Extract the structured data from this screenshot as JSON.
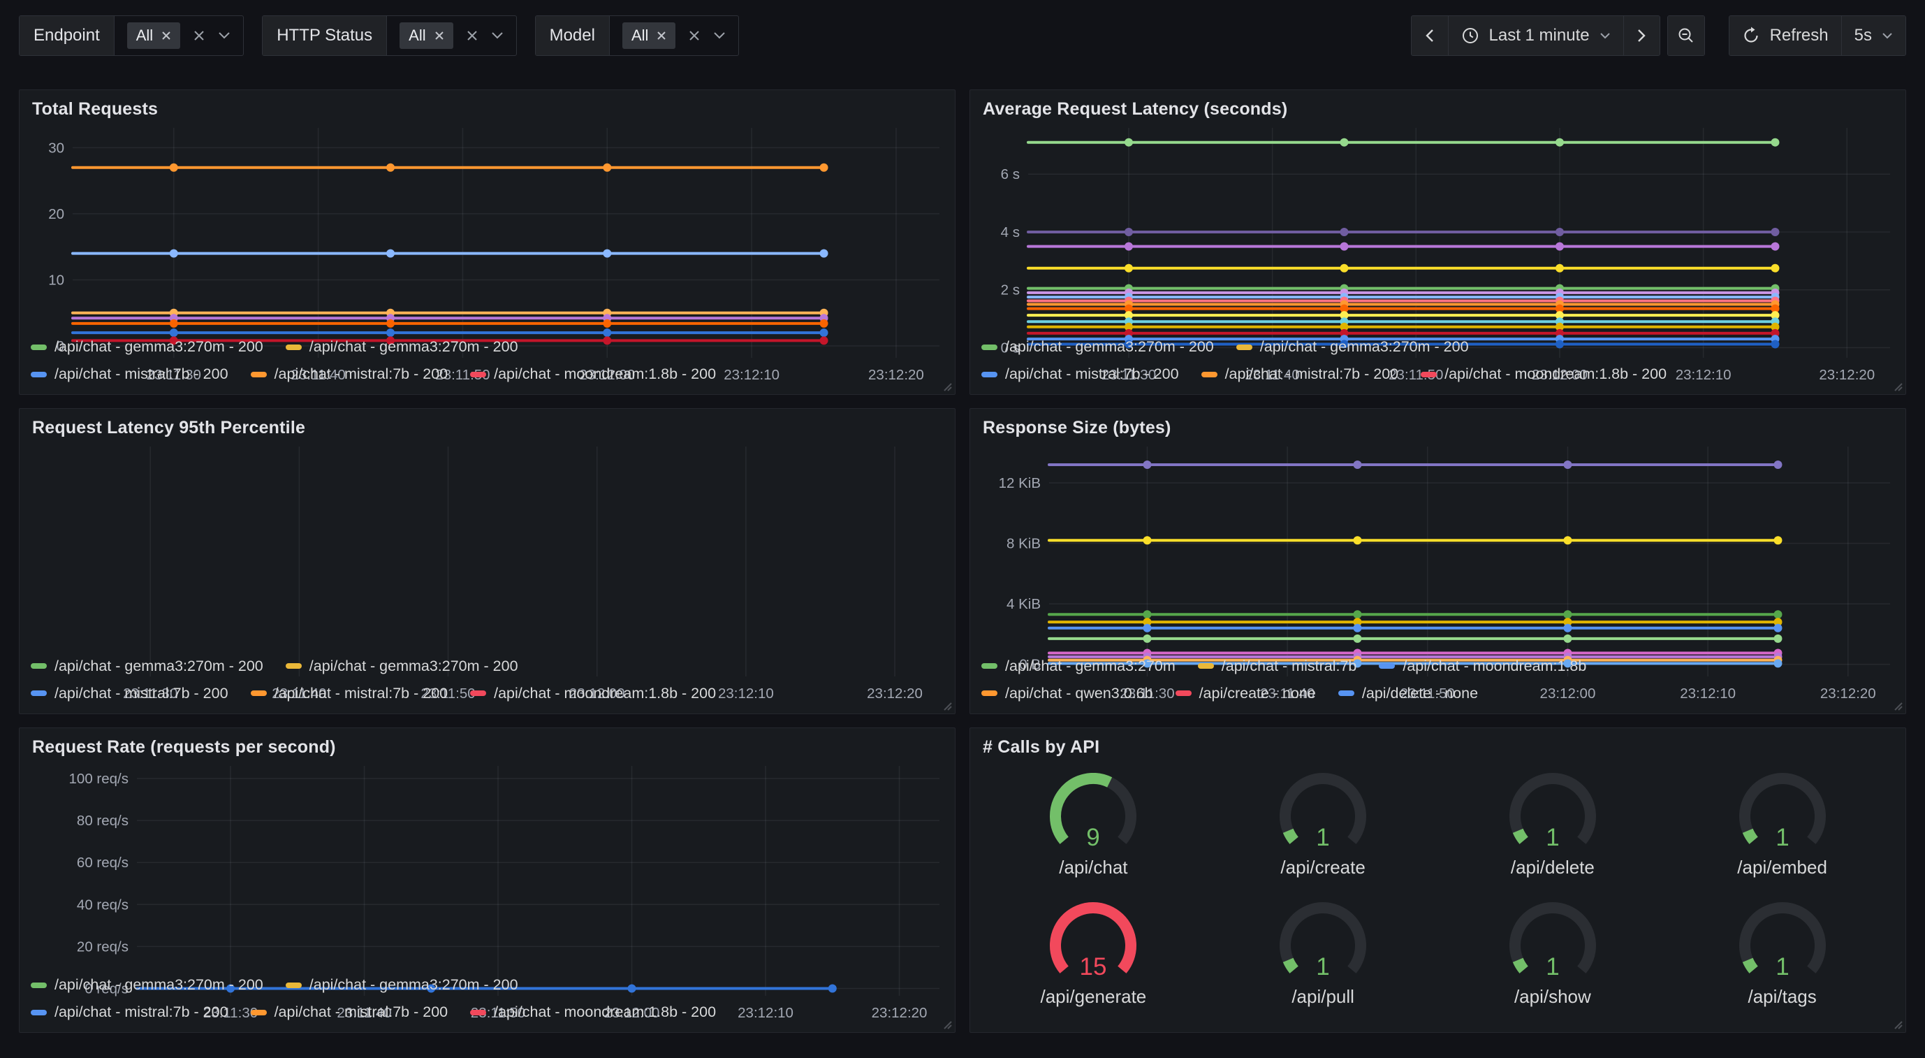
{
  "colors": {
    "page_bg": "#111217",
    "panel_bg": "#181b1f",
    "panel_border": "#25272e",
    "text": "#d8d9da",
    "muted_text": "#9da5b4",
    "grid": "rgba(204,214,235,0.08)",
    "green": "#73BF69",
    "red": "#F2495C",
    "gauge_track": "#2b2e33"
  },
  "toolbar": {
    "filters": [
      {
        "label": "Endpoint",
        "value_tag": "All"
      },
      {
        "label": "HTTP Status",
        "value_tag": "All"
      },
      {
        "label": "Model",
        "value_tag": "All"
      }
    ],
    "time_picker": {
      "range_label": "Last 1 minute"
    },
    "refresh": {
      "label": "Refresh",
      "interval": "5s"
    }
  },
  "chart_data": [
    {
      "id": "total-requests",
      "type": "line",
      "title": "Total Requests",
      "x_ticks": [
        "23:11:30",
        "23:11:40",
        "23:11:50",
        "23:12:00",
        "23:12:10",
        "23:12:20"
      ],
      "x_range": [
        "23:11:23",
        "23:12:23"
      ],
      "point_times": [
        "23:11:30",
        "23:11:45",
        "23:12:00",
        "23:12:15"
      ],
      "y_ticks": [
        {
          "value": 0,
          "label": "0"
        },
        {
          "value": 10,
          "label": "10"
        },
        {
          "value": 20,
          "label": "20"
        },
        {
          "value": 30,
          "label": "30"
        }
      ],
      "ylim": [
        -1.8,
        33
      ],
      "layout": {
        "gutter": 68
      },
      "series": [
        {
          "color": "#FF9830",
          "value": 27
        },
        {
          "color": "#8AB8FF",
          "value": 14
        },
        {
          "color": "#FFB357",
          "value": 5
        },
        {
          "color": "#B877D9",
          "value": 4.2
        },
        {
          "color": "#FA6400",
          "value": 3.4
        },
        {
          "color": "#3274D9",
          "value": 2
        },
        {
          "color": "#C4162A",
          "value": 0.8
        }
      ],
      "legend_rows": [
        [
          {
            "color": "#73BF69",
            "label": "/api/chat - gemma3:270m - 200"
          },
          {
            "color": "#EAB839",
            "label": "/api/chat - gemma3:270m - 200"
          }
        ],
        [
          {
            "color": "#5794F2",
            "label": "/api/chat - mistral:7b - 200"
          },
          {
            "color": "#FF9830",
            "label": "/api/chat - mistral:7b - 200"
          },
          {
            "color": "#F2495C",
            "label": "/api/chat - moondream:1.8b - 200"
          }
        ]
      ]
    },
    {
      "id": "avg-latency",
      "type": "line",
      "title": "Average Request Latency (seconds)",
      "x_ticks": [
        "23:11:30",
        "23:11:40",
        "23:11:50",
        "23:12:00",
        "23:12:10",
        "23:12:20"
      ],
      "x_range": [
        "23:11:23",
        "23:12:23"
      ],
      "point_times": [
        "23:11:30",
        "23:11:45",
        "23:12:00",
        "23:12:15"
      ],
      "y_ticks": [
        {
          "value": 0,
          "label": "0 s"
        },
        {
          "value": 2,
          "label": "2 s"
        },
        {
          "value": 4,
          "label": "4 s"
        },
        {
          "value": 6,
          "label": "6 s"
        }
      ],
      "ylim": [
        -0.35,
        7.6
      ],
      "layout": {
        "gutter": 75
      },
      "series": [
        {
          "color": "#96D98D",
          "value": 7.1
        },
        {
          "color": "#705DA0",
          "value": 4
        },
        {
          "color": "#B877D9",
          "value": 3.5
        },
        {
          "color": "#FADE2A",
          "value": 2.75
        },
        {
          "color": "#73BF69",
          "value": 2.05
        },
        {
          "color": "#CA95E5",
          "value": 1.9
        },
        {
          "color": "#8AB8FF",
          "value": 1.75
        },
        {
          "color": "#FF7383",
          "value": 1.62
        },
        {
          "color": "#FF9830",
          "value": 1.5
        },
        {
          "color": "#FA6400",
          "value": 1.35
        },
        {
          "color": "#FFEE52",
          "value": 1.12
        },
        {
          "color": "#6ED0E0",
          "value": 0.9
        },
        {
          "color": "#E0B400",
          "value": 0.72
        },
        {
          "color": "#C4162A",
          "value": 0.5
        },
        {
          "color": "#5794F2",
          "value": 0.3
        },
        {
          "color": "#1F60C4",
          "value": 0.12
        }
      ],
      "legend_rows": [
        [
          {
            "color": "#73BF69",
            "label": "/api/chat - gemma3:270m - 200"
          },
          {
            "color": "#EAB839",
            "label": "/api/chat - gemma3:270m - 200"
          }
        ],
        [
          {
            "color": "#5794F2",
            "label": "/api/chat - mistral:7b - 200"
          },
          {
            "color": "#FF9830",
            "label": "/api/chat - mistral:7b - 200"
          },
          {
            "color": "#F2495C",
            "label": "/api/chat - moondream:1.8b - 200"
          }
        ]
      ]
    },
    {
      "id": "latency-p95",
      "type": "line",
      "title": "Request Latency 95th Percentile",
      "x_ticks": [
        "23:11:30",
        "23:11:40",
        "23:11:50",
        "23:12:00",
        "23:12:10",
        "23:12:20"
      ],
      "x_range": [
        "23:11:23",
        "23:12:23"
      ],
      "point_times": [],
      "y_ticks": [],
      "ylim": [
        0,
        1
      ],
      "layout": {
        "gutter": 30
      },
      "series": [],
      "legend_rows": [
        [
          {
            "color": "#73BF69",
            "label": "/api/chat - gemma3:270m - 200"
          },
          {
            "color": "#EAB839",
            "label": "/api/chat - gemma3:270m - 200"
          }
        ],
        [
          {
            "color": "#5794F2",
            "label": "/api/chat - mistral:7b - 200"
          },
          {
            "color": "#FF9830",
            "label": "/api/chat - mistral:7b - 200"
          },
          {
            "color": "#F2495C",
            "label": "/api/chat - moondream:1.8b - 200"
          }
        ]
      ]
    },
    {
      "id": "response-size",
      "type": "line",
      "title": "Response Size (bytes)",
      "y_unit": "KiB",
      "x_ticks": [
        "23:11:30",
        "23:11:40",
        "23:11:50",
        "23:12:00",
        "23:12:10",
        "23:12:20"
      ],
      "x_range": [
        "23:11:23",
        "23:12:23"
      ],
      "point_times": [
        "23:11:30",
        "23:11:45",
        "23:12:00",
        "23:12:15"
      ],
      "y_ticks": [
        {
          "value": 0,
          "label": "0 B"
        },
        {
          "value": 4,
          "label": "4 KiB"
        },
        {
          "value": 8,
          "label": "8 KiB"
        },
        {
          "value": 12,
          "label": "12 KiB"
        }
      ],
      "ylim": [
        -0.8,
        14.4
      ],
      "layout": {
        "gutter": 105
      },
      "series": [
        {
          "color": "#8275C4",
          "value": 13.2
        },
        {
          "color": "#FADE2A",
          "value": 8.2
        },
        {
          "color": "#56A64B",
          "value": 3.3
        },
        {
          "color": "#E0B400",
          "value": 2.8
        },
        {
          "color": "#5794F2",
          "value": 2.4
        },
        {
          "color": "#96D98D",
          "value": 1.7
        },
        {
          "color": "#D668C9",
          "value": 0.75
        },
        {
          "color": "#B877D9",
          "value": 0.5
        },
        {
          "color": "#FFB357",
          "value": 0.28
        },
        {
          "color": "#69A9F2",
          "value": 0.06
        }
      ],
      "legend_rows": [
        [
          {
            "color": "#73BF69",
            "label": "/api/chat - gemma3:270m"
          },
          {
            "color": "#EAB839",
            "label": "/api/chat - mistral:7b"
          },
          {
            "color": "#5794F2",
            "label": "/api/chat - moondream:1.8b"
          }
        ],
        [
          {
            "color": "#FF9830",
            "label": "/api/chat - qwen3:0.6b"
          },
          {
            "color": "#F2495C",
            "label": "/api/create - none"
          },
          {
            "color": "#5794F2",
            "label": "/api/delete - none"
          }
        ]
      ]
    },
    {
      "id": "request-rate",
      "type": "line",
      "title": "Request Rate (requests per second)",
      "x_ticks": [
        "23:11:30",
        "23:11:40",
        "23:11:50",
        "23:12:00",
        "23:12:10",
        "23:12:20"
      ],
      "x_range": [
        "23:11:23",
        "23:12:23"
      ],
      "point_times": [
        "23:11:30",
        "23:11:45",
        "23:12:00",
        "23:12:15"
      ],
      "y_ticks": [
        {
          "value": 0,
          "label": "0 req/s"
        },
        {
          "value": 20,
          "label": "20 req/s"
        },
        {
          "value": 40,
          "label": "40 req/s"
        },
        {
          "value": 60,
          "label": "60 req/s"
        },
        {
          "value": 80,
          "label": "80 req/s"
        },
        {
          "value": 100,
          "label": "100 req/s"
        }
      ],
      "ylim": [
        -3.5,
        106
      ],
      "layout": {
        "gutter": 160
      },
      "series": [
        {
          "color": "#3274D9",
          "value": 0
        }
      ],
      "legend_rows": [
        [
          {
            "color": "#73BF69",
            "label": "/api/chat - gemma3:270m - 200"
          },
          {
            "color": "#EAB839",
            "label": "/api/chat - gemma3:270m - 200"
          }
        ],
        [
          {
            "color": "#5794F2",
            "label": "/api/chat - mistral:7b - 200"
          },
          {
            "color": "#FF9830",
            "label": "/api/chat - mistral:7b - 200"
          },
          {
            "color": "#F2495C",
            "label": "/api/chat - moondream:1.8b - 200"
          }
        ]
      ]
    },
    {
      "id": "calls-by-api",
      "type": "gauge",
      "title": "# Calls by API",
      "min": 0,
      "max": 15,
      "items": [
        {
          "label": "/api/chat",
          "value": 9,
          "color": "#73BF69"
        },
        {
          "label": "/api/create",
          "value": 1,
          "color": "#73BF69"
        },
        {
          "label": "/api/delete",
          "value": 1,
          "color": "#73BF69"
        },
        {
          "label": "/api/embed",
          "value": 1,
          "color": "#73BF69"
        },
        {
          "label": "/api/generate",
          "value": 15,
          "color": "#F2495C"
        },
        {
          "label": "/api/pull",
          "value": 1,
          "color": "#73BF69"
        },
        {
          "label": "/api/show",
          "value": 1,
          "color": "#73BF69"
        },
        {
          "label": "/api/tags",
          "value": 1,
          "color": "#73BF69"
        }
      ]
    }
  ]
}
